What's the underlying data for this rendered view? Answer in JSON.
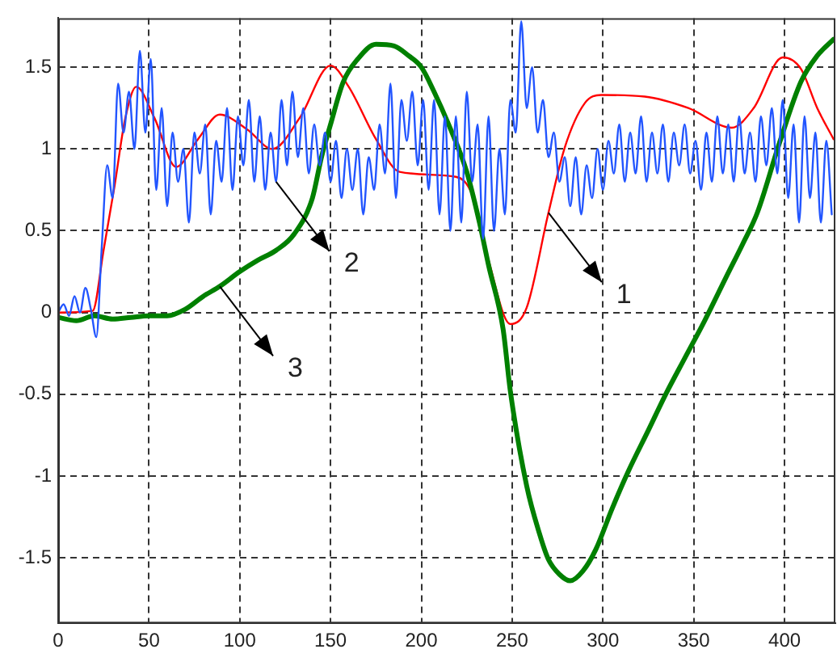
{
  "chart_data": {
    "type": "line",
    "xlim": [
      0,
      428
    ],
    "ylim": [
      -1.9,
      1.8
    ],
    "xticks": [
      0,
      50,
      100,
      150,
      200,
      250,
      300,
      350,
      400
    ],
    "yticks": [
      -1.5,
      -1,
      -0.5,
      0,
      0.5,
      1,
      1.5
    ],
    "grid": true,
    "legend": false,
    "marker": "none",
    "line_style": "solid",
    "series": [
      {
        "color": "#2255ff",
        "x": [
          0,
          3,
          6,
          9,
          12,
          15,
          18,
          21,
          24,
          27,
          30,
          33,
          36,
          39,
          42,
          45,
          48,
          51,
          54,
          57,
          60,
          63,
          66,
          69,
          72,
          75,
          78,
          81,
          84,
          87,
          90,
          93,
          96,
          99,
          102,
          105,
          108,
          111,
          114,
          117,
          120,
          123,
          126,
          129,
          132,
          135,
          138,
          141,
          144,
          147,
          150,
          153,
          156,
          159,
          162,
          165,
          168,
          171,
          174,
          177,
          180,
          183,
          186,
          189,
          192,
          195,
          198,
          201,
          204,
          207,
          210,
          213,
          216,
          219,
          222,
          225,
          228,
          231,
          234,
          237,
          240,
          243,
          246,
          249,
          252,
          255,
          258,
          261,
          264,
          267,
          270,
          273,
          276,
          279,
          282,
          285,
          288,
          291,
          294,
          297,
          300,
          303,
          306,
          309,
          312,
          315,
          318,
          321,
          324,
          327,
          330,
          333,
          336,
          339,
          342,
          345,
          348,
          351,
          354,
          357,
          360,
          363,
          366,
          369,
          372,
          375,
          378,
          381,
          384,
          387,
          390,
          393,
          396,
          399,
          402,
          405,
          408,
          411,
          414,
          417,
          420,
          423,
          426
        ],
        "values": [
          0,
          0.05,
          -0.02,
          0.1,
          0,
          0.15,
          0.02,
          -0.15,
          0.4,
          0.9,
          0.7,
          1.4,
          1.1,
          1.35,
          1,
          1.6,
          1.1,
          1.55,
          0.75,
          1.25,
          0.65,
          1.1,
          0.8,
          1,
          0.55,
          1.1,
          0.85,
          1.15,
          0.6,
          1.05,
          0.8,
          1.25,
          0.75,
          1.2,
          0.9,
          1.3,
          0.8,
          1.2,
          0.75,
          1.1,
          0.8,
          1.3,
          0.9,
          1.35,
          0.95,
          1.25,
          0.85,
          1.15,
          0.9,
          1.1,
          0.8,
          1.05,
          0.7,
          1,
          0.75,
          1,
          0.6,
          0.95,
          0.75,
          1.15,
          0.85,
          1.4,
          0.7,
          1.3,
          1.05,
          1.35,
          0.9,
          1.3,
          0.75,
          1.3,
          0.6,
          1.2,
          0.5,
          1.2,
          0.55,
          1.35,
          0.8,
          1.15,
          0.45,
          1.2,
          0.5,
          1,
          0.6,
          1.3,
          1.1,
          1.78,
          1.25,
          1.5,
          1.1,
          1.3,
          0.95,
          1.1,
          0.8,
          0.95,
          0.65,
          0.95,
          0.6,
          0.9,
          0.7,
          1,
          0.75,
          1.05,
          0.85,
          1.15,
          0.8,
          1.1,
          0.85,
          1.2,
          0.8,
          1.1,
          0.85,
          1.15,
          0.8,
          1.1,
          0.9,
          1.15,
          0.85,
          1.05,
          0.75,
          1.1,
          0.8,
          1.2,
          0.85,
          1.15,
          0.8,
          1.2,
          0.85,
          1.1,
          0.8,
          1.2,
          0.9,
          1.25,
          0.85,
          1.3,
          0.7,
          1.15,
          0.55,
          1.2,
          0.7,
          1.1,
          0.55,
          1.05,
          0.6
        ]
      },
      {
        "color": "#008000",
        "x": [
          0,
          10,
          20,
          30,
          40,
          50,
          60,
          70,
          80,
          89,
          100,
          110,
          120,
          130,
          140,
          145,
          150,
          157,
          165,
          175,
          185,
          193,
          200,
          207,
          215,
          225,
          232,
          237,
          245,
          249,
          258,
          265,
          270,
          276,
          282,
          289,
          296,
          305,
          314,
          325,
          335,
          345,
          356,
          368,
          377,
          385,
          397,
          409,
          418,
          427
        ],
        "values": [
          -0.03,
          -0.05,
          -0.02,
          -0.04,
          -0.03,
          -0.02,
          -0.02,
          0.02,
          0.1,
          0.16,
          0.25,
          0.32,
          0.38,
          0.48,
          0.7,
          0.95,
          1.15,
          1.41,
          1.55,
          1.64,
          1.63,
          1.57,
          1.5,
          1.35,
          1.15,
          0.86,
          0.55,
          0.29,
          -0.1,
          -0.48,
          -1.06,
          -1.35,
          -1.51,
          -1.6,
          -1.64,
          -1.58,
          -1.45,
          -1.2,
          -0.97,
          -0.72,
          -0.49,
          -0.28,
          -0.05,
          0.22,
          0.42,
          0.61,
          1.03,
          1.41,
          1.57,
          1.67
        ]
      },
      {
        "color": "#ff0000",
        "x": [
          0,
          19,
          25,
          31,
          37,
          43,
          53,
          65,
          77,
          89,
          104,
          118,
          133,
          150,
          160,
          175,
          188,
          219,
          228,
          237,
          249,
          258,
          270,
          279,
          290,
          299,
          323,
          347,
          371,
          383,
          399,
          409,
          418,
          427
        ],
        "values": [
          0,
          0.01,
          0.38,
          0.77,
          1.19,
          1.38,
          1.19,
          0.89,
          1.06,
          1.21,
          1.12,
          1,
          1.19,
          1.51,
          1.38,
          1.06,
          0.86,
          0.83,
          0.72,
          0.32,
          -0.07,
          0.03,
          0.61,
          1.01,
          1.28,
          1.33,
          1.32,
          1.25,
          1.13,
          1.25,
          1.56,
          1.49,
          1.25,
          1.06
        ]
      }
    ],
    "annotations": [
      {
        "text": "1",
        "x": 270,
        "y": 0.61
      },
      {
        "text": "2",
        "x": 120,
        "y": 0.8
      },
      {
        "text": "3",
        "x": 89,
        "y": 0.16
      }
    ]
  }
}
